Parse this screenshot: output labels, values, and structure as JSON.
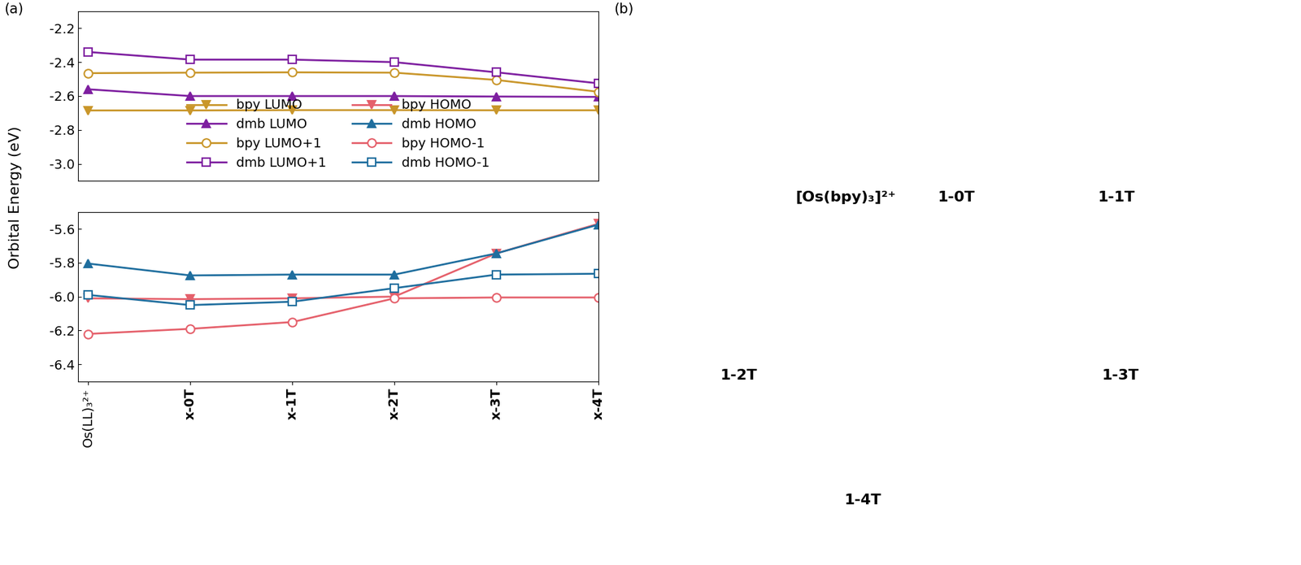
{
  "chart_data": [
    {
      "type": "line",
      "categories": [
        "Os(LL)₃²⁺",
        "x-0T",
        "x-1T",
        "x-2T",
        "x-3T",
        "x-4T"
      ],
      "ylim": [
        -3.1,
        -2.1
      ],
      "yticks": [
        -3.0,
        -2.8,
        -2.6,
        -2.4,
        -2.2
      ],
      "tick_labels": "y",
      "legend": "lower center",
      "series": [
        {
          "name": "bpy LUMO",
          "color": "#c9962a",
          "marker": "triangle_down",
          "line_style": "solid",
          "values": [
            -2.685,
            -2.685,
            -2.683,
            -2.683,
            -2.684,
            -2.684
          ]
        },
        {
          "name": "dmb LUMO",
          "color": "#7e1fa0",
          "marker": "triangle_up",
          "line_style": "solid",
          "values": [
            -2.56,
            -2.6,
            -2.6,
            -2.6,
            -2.603,
            -2.605
          ]
        },
        {
          "name": "bpy LUMO+1",
          "color": "#c9962a",
          "marker": "circle_open",
          "line_style": "solid",
          "values": [
            -2.465,
            -2.462,
            -2.46,
            -2.462,
            -2.505,
            -2.575
          ]
        },
        {
          "name": "dmb LUMO+1",
          "color": "#7e1fa0",
          "marker": "square_open",
          "line_style": "solid",
          "values": [
            -2.34,
            -2.385,
            -2.385,
            -2.4,
            -2.46,
            -2.525
          ]
        }
      ]
    },
    {
      "type": "line",
      "categories": [
        "Os(LL)₃²⁺",
        "x-0T",
        "x-1T",
        "x-2T",
        "x-3T",
        "x-4T"
      ],
      "ylim": [
        -6.5,
        -5.5
      ],
      "yticks": [
        -6.4,
        -6.2,
        -6.0,
        -5.8,
        -5.6
      ],
      "series": [
        {
          "name": "bpy HOMO",
          "color": "#e5606b",
          "marker": "triangle_down",
          "line_style": "solid",
          "values": [
            -6.01,
            -6.015,
            -6.01,
            -6.0,
            -5.745,
            -5.57
          ]
        },
        {
          "name": "dmb HOMO",
          "color": "#1f6e9e",
          "marker": "triangle_up",
          "line_style": "solid",
          "values": [
            -5.805,
            -5.875,
            -5.87,
            -5.87,
            -5.745,
            -5.575
          ]
        },
        {
          "name": "bpy HOMO-1",
          "color": "#e5606b",
          "marker": "circle_open",
          "line_style": "solid",
          "values": [
            -6.22,
            -6.19,
            -6.15,
            -6.01,
            -6.005,
            -6.005
          ]
        },
        {
          "name": "dmb HOMO-1",
          "color": "#1f6e9e",
          "marker": "square_open",
          "line_style": "solid",
          "values": [
            -5.99,
            -6.05,
            -6.03,
            -5.95,
            -5.87,
            -5.865
          ]
        }
      ]
    }
  ],
  "figure": {
    "ylabel": "Orbital Energy (eV)",
    "panel_labels": [
      "(a)",
      "(b)"
    ],
    "structures": [
      "[Os(bpy)₃]²⁺",
      "1-0T",
      "1-1T",
      "1-2T",
      "1-3T",
      "1-4T"
    ]
  }
}
